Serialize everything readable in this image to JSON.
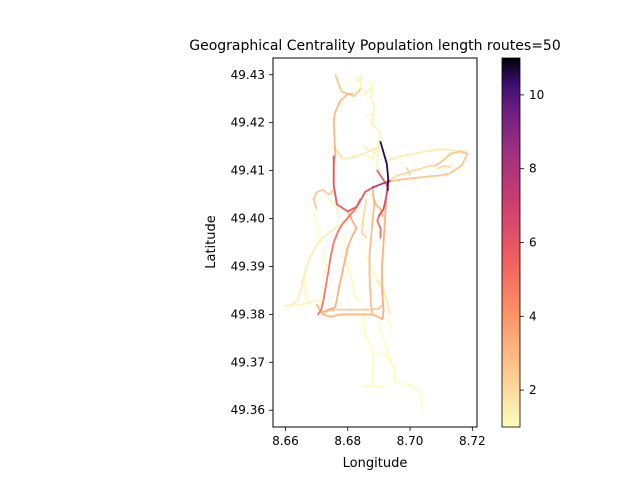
{
  "chart_data": {
    "type": "line",
    "title": "Geographical Centrality Population length routes=50",
    "xlabel": "Longitude",
    "ylabel": "Latitude",
    "xlim": [
      8.656,
      8.7215
    ],
    "ylim": [
      49.3565,
      49.4335
    ],
    "xticks": [
      8.66,
      8.68,
      8.7,
      8.72
    ],
    "xtick_labels": [
      "8.66",
      "8.68",
      "8.70",
      "8.72"
    ],
    "yticks": [
      49.36,
      49.37,
      49.38,
      49.39,
      49.4,
      49.41,
      49.42,
      49.43
    ],
    "ytick_labels": [
      "49.36",
      "49.37",
      "49.38",
      "49.39",
      "49.40",
      "49.41",
      "49.42",
      "49.43"
    ],
    "colorbar": {
      "colormap": "magma_r",
      "range": [
        1,
        11
      ],
      "ticks": [
        2,
        4,
        6,
        8,
        10
      ],
      "tick_labels": [
        "2",
        "4",
        "6",
        "8",
        "10"
      ]
    },
    "grid": false,
    "series": [
      {
        "value": 1.2,
        "points": [
          [
            8.6825,
            49.4295
          ],
          [
            8.6835,
            49.4285
          ],
          [
            8.6845,
            49.43
          ],
          [
            8.684,
            49.427
          ],
          [
            8.6855,
            49.426
          ],
          [
            8.688,
            49.4275
          ],
          [
            8.6875,
            49.4255
          ],
          [
            8.6885,
            49.423
          ],
          [
            8.688,
            49.42
          ],
          [
            8.689,
            49.419
          ],
          [
            8.6905,
            49.418
          ],
          [
            8.69,
            49.415
          ],
          [
            8.6895,
            49.4125
          ],
          [
            8.6895,
            49.41
          ]
        ]
      },
      {
        "value": 1.0,
        "points": [
          [
            8.6875,
            49.429
          ],
          [
            8.6872,
            49.4265
          ]
        ]
      },
      {
        "value": 1.2,
        "points": [
          [
            8.686,
            49.4215
          ],
          [
            8.688,
            49.4218
          ],
          [
            8.6875,
            49.4195
          ],
          [
            8.689,
            49.419
          ]
        ]
      },
      {
        "value": 1.3,
        "points": [
          [
            8.6855,
            49.415
          ],
          [
            8.687,
            49.414
          ],
          [
            8.689,
            49.4145
          ],
          [
            8.688,
            49.4125
          ],
          [
            8.6865,
            49.413
          ]
        ]
      },
      {
        "value": 1.5,
        "points": [
          [
            8.678,
            49.4125
          ],
          [
            8.68,
            49.4125
          ],
          [
            8.683,
            49.413
          ],
          [
            8.686,
            49.4138
          ],
          [
            8.69,
            49.415
          ]
        ]
      },
      {
        "value": 2.0,
        "points": [
          [
            8.6755,
            49.415
          ],
          [
            8.678,
            49.4128
          ]
        ]
      },
      {
        "value": 2.5,
        "points": [
          [
            8.676,
            49.43
          ],
          [
            8.678,
            49.4265
          ],
          [
            8.682,
            49.4255
          ],
          [
            8.684,
            49.427
          ]
        ]
      },
      {
        "value": 3.0,
        "points": [
          [
            8.6755,
            49.407
          ],
          [
            8.6755,
            49.411
          ],
          [
            8.676,
            49.413
          ],
          [
            8.6758,
            49.416
          ],
          [
            8.6755,
            49.42
          ],
          [
            8.6758,
            49.422
          ],
          [
            8.6775,
            49.4245
          ],
          [
            8.68,
            49.426
          ],
          [
            8.6815,
            49.426
          ]
        ]
      },
      {
        "value": 6.0,
        "points": [
          [
            8.6755,
            49.413
          ],
          [
            8.6755,
            49.407
          ],
          [
            8.676,
            49.405
          ]
        ]
      },
      {
        "value": 5.8,
        "points": [
          [
            8.676,
            49.405
          ],
          [
            8.6765,
            49.403
          ],
          [
            8.68,
            49.4015
          ],
          [
            8.683,
            49.4025
          ],
          [
            8.6855,
            49.4055
          ],
          [
            8.688,
            49.4065
          ]
        ]
      },
      {
        "value": 7.5,
        "points": [
          [
            8.688,
            49.4065
          ],
          [
            8.692,
            49.4075
          ],
          [
            8.6935,
            49.4078
          ]
        ]
      },
      {
        "value": 5.5,
        "points": [
          [
            8.6895,
            49.41
          ],
          [
            8.6925,
            49.407
          ],
          [
            8.693,
            49.406
          ]
        ]
      },
      {
        "value": 10.5,
        "points": [
          [
            8.6905,
            49.416
          ],
          [
            8.6925,
            49.4115
          ],
          [
            8.693,
            49.4085
          ],
          [
            8.6928,
            49.406
          ]
        ]
      },
      {
        "value": 6.5,
        "points": [
          [
            8.6928,
            49.406
          ],
          [
            8.6915,
            49.402
          ],
          [
            8.69,
            49.4005
          ]
        ]
      },
      {
        "value": 5.0,
        "points": [
          [
            8.69,
            49.4005
          ],
          [
            8.6895,
            49.3995
          ],
          [
            8.6905,
            49.398
          ],
          [
            8.6905,
            49.396
          ]
        ]
      },
      {
        "value": 2.8,
        "points": [
          [
            8.688,
            49.4065
          ],
          [
            8.6885,
            49.403
          ],
          [
            8.688,
            49.4
          ],
          [
            8.6875,
            49.396
          ],
          [
            8.687,
            49.3925
          ],
          [
            8.687,
            49.388
          ],
          [
            8.6872,
            49.385
          ],
          [
            8.6875,
            49.382
          ],
          [
            8.688,
            49.38
          ]
        ]
      },
      {
        "value": 3.2,
        "points": [
          [
            8.6925,
            49.406
          ],
          [
            8.692,
            49.4
          ],
          [
            8.6915,
            49.395
          ],
          [
            8.691,
            49.39
          ],
          [
            8.691,
            49.385
          ],
          [
            8.6915,
            49.381
          ],
          [
            8.6912,
            49.379
          ]
        ]
      },
      {
        "value": 2.0,
        "points": [
          [
            8.6935,
            49.408
          ],
          [
            8.696,
            49.409
          ],
          [
            8.699,
            49.4095
          ],
          [
            8.701,
            49.41
          ],
          [
            8.704,
            49.4105
          ],
          [
            8.706,
            49.411
          ],
          [
            8.708,
            49.411
          ]
        ]
      },
      {
        "value": 2.6,
        "points": [
          [
            8.6935,
            49.4078
          ],
          [
            8.698,
            49.4082
          ],
          [
            8.702,
            49.4085
          ],
          [
            8.706,
            49.4088
          ],
          [
            8.71,
            49.409
          ],
          [
            8.713,
            49.4095
          ],
          [
            8.7165,
            49.411
          ],
          [
            8.7185,
            49.4135
          ],
          [
            8.716,
            49.414
          ],
          [
            8.713,
            49.4135
          ],
          [
            8.71,
            49.4118
          ],
          [
            8.708,
            49.411
          ]
        ]
      },
      {
        "value": 2.2,
        "points": [
          [
            8.699,
            49.4105
          ],
          [
            8.7,
            49.4092
          ]
        ]
      },
      {
        "value": 1.5,
        "points": [
          [
            8.692,
            49.412
          ],
          [
            8.697,
            49.413
          ],
          [
            8.701,
            49.4135
          ],
          [
            8.705,
            49.414
          ],
          [
            8.71,
            49.4145
          ],
          [
            8.715,
            49.4142
          ],
          [
            8.718,
            49.414
          ]
        ]
      },
      {
        "value": 2.0,
        "points": [
          [
            8.709,
            49.4105
          ],
          [
            8.711,
            49.411
          ],
          [
            8.713,
            49.4108
          ]
        ]
      },
      {
        "value": 4.8,
        "points": [
          [
            8.684,
            49.404
          ],
          [
            8.6825,
            49.402
          ],
          [
            8.6805,
            49.4005
          ],
          [
            8.6785,
            49.399
          ],
          [
            8.677,
            49.3975
          ],
          [
            8.6755,
            49.395
          ],
          [
            8.6745,
            49.392
          ],
          [
            8.6738,
            49.389
          ],
          [
            8.673,
            49.386
          ],
          [
            8.6722,
            49.383
          ],
          [
            8.6715,
            49.381
          ],
          [
            8.6705,
            49.38
          ]
        ]
      },
      {
        "value": 3.2,
        "points": [
          [
            8.68,
            49.4015
          ],
          [
            8.6815,
            49.3995
          ],
          [
            8.6828,
            49.398
          ],
          [
            8.6812,
            49.396
          ],
          [
            8.68,
            49.394
          ],
          [
            8.679,
            49.391
          ],
          [
            8.678,
            49.388
          ],
          [
            8.677,
            49.385
          ],
          [
            8.6765,
            49.383
          ],
          [
            8.676,
            49.3815
          ],
          [
            8.674,
            49.381
          ],
          [
            8.672,
            49.3805
          ]
        ]
      },
      {
        "value": 2.5,
        "points": [
          [
            8.672,
            49.3805
          ],
          [
            8.676,
            49.381
          ],
          [
            8.68,
            49.381
          ],
          [
            8.684,
            49.381
          ],
          [
            8.687,
            49.381
          ],
          [
            8.69,
            49.3812
          ],
          [
            8.6912,
            49.382
          ],
          [
            8.6913,
            49.385
          ]
        ]
      },
      {
        "value": 3.0,
        "points": [
          [
            8.67,
            49.382
          ],
          [
            8.672,
            49.38
          ],
          [
            8.6745,
            49.3795
          ],
          [
            8.678,
            49.38
          ],
          [
            8.682,
            49.38
          ],
          [
            8.685,
            49.38
          ],
          [
            8.688,
            49.38
          ],
          [
            8.6912,
            49.379
          ]
        ]
      },
      {
        "value": 2.0,
        "points": [
          [
            8.686,
            49.404
          ],
          [
            8.685,
            49.4
          ],
          [
            8.6845,
            49.397
          ],
          [
            8.686,
            49.396
          ]
        ]
      },
      {
        "value": 3.0,
        "points": [
          [
            8.688,
            49.405
          ],
          [
            8.689,
            49.403
          ],
          [
            8.6905,
            49.402
          ],
          [
            8.6912,
            49.4005
          ]
        ]
      },
      {
        "value": 2.4,
        "points": [
          [
            8.67,
            49.402
          ],
          [
            8.669,
            49.404
          ],
          [
            8.67,
            49.4055
          ],
          [
            8.672,
            49.406
          ],
          [
            8.674,
            49.405
          ],
          [
            8.6755,
            49.406
          ]
        ]
      },
      {
        "value": 1.2,
        "points": [
          [
            8.674,
            49.404
          ],
          [
            8.676,
            49.403
          ],
          [
            8.677,
            49.401
          ]
        ]
      },
      {
        "value": 1.4,
        "points": [
          [
            8.684,
            49.404
          ],
          [
            8.681,
            49.401
          ],
          [
            8.678,
            49.399
          ],
          [
            8.675,
            49.3975
          ],
          [
            8.672,
            49.396
          ],
          [
            8.67,
            49.3945
          ],
          [
            8.668,
            49.392
          ],
          [
            8.6665,
            49.3895
          ],
          [
            8.6655,
            49.387
          ],
          [
            8.665,
            49.385
          ],
          [
            8.664,
            49.383
          ],
          [
            8.662,
            49.382
          ],
          [
            8.66,
            49.3818
          ]
        ]
      },
      {
        "value": 1.1,
        "points": [
          [
            8.6665,
            49.3895
          ],
          [
            8.666,
            49.387
          ],
          [
            8.6665,
            49.3845
          ],
          [
            8.667,
            49.382
          ]
        ]
      },
      {
        "value": 1.2,
        "points": [
          [
            8.662,
            49.3818
          ],
          [
            8.665,
            49.382
          ],
          [
            8.668,
            49.3825
          ],
          [
            8.67,
            49.383
          ],
          [
            8.6715,
            49.3825
          ]
        ]
      },
      {
        "value": 1.0,
        "points": [
          [
            8.669,
            49.401
          ],
          [
            8.67,
            49.399
          ],
          [
            8.671,
            49.398
          ],
          [
            8.67,
            49.396
          ],
          [
            8.671,
            49.395
          ]
        ]
      },
      {
        "value": 1.0,
        "points": [
          [
            8.672,
            49.393
          ],
          [
            8.6735,
            49.39
          ],
          [
            8.672,
            49.388
          ]
        ]
      },
      {
        "value": 1.1,
        "points": [
          [
            8.679,
            49.396
          ],
          [
            8.68,
            49.39
          ],
          [
            8.6815,
            49.387
          ],
          [
            8.682,
            49.384
          ],
          [
            8.683,
            49.383
          ],
          [
            8.6845,
            49.3835
          ]
        ]
      },
      {
        "value": 1.0,
        "points": [
          [
            8.686,
            49.3925
          ],
          [
            8.687,
            49.39
          ],
          [
            8.689,
            49.388
          ],
          [
            8.69,
            49.386
          ]
        ]
      },
      {
        "value": 1.0,
        "points": [
          [
            8.686,
            49.3815
          ],
          [
            8.685,
            49.378
          ],
          [
            8.6855,
            49.376
          ],
          [
            8.687,
            49.374
          ],
          [
            8.688,
            49.372
          ],
          [
            8.688,
            49.37
          ],
          [
            8.688,
            49.368
          ],
          [
            8.688,
            49.366
          ],
          [
            8.6885,
            49.365
          ]
        ]
      },
      {
        "value": 1.0,
        "points": [
          [
            8.689,
            49.372
          ],
          [
            8.692,
            49.3715
          ],
          [
            8.694,
            49.37
          ],
          [
            8.695,
            49.369
          ]
        ]
      },
      {
        "value": 1.0,
        "points": [
          [
            8.69,
            49.378
          ],
          [
            8.692,
            49.374
          ],
          [
            8.694,
            49.37
          ],
          [
            8.695,
            49.368
          ],
          [
            8.695,
            49.366
          ],
          [
            8.698,
            49.3655
          ],
          [
            8.701,
            49.365
          ],
          [
            8.703,
            49.364
          ],
          [
            8.704,
            49.362
          ],
          [
            8.7035,
            49.3605
          ]
        ]
      },
      {
        "value": 1.0,
        "points": [
          [
            8.6845,
            49.365
          ],
          [
            8.688,
            49.3652
          ],
          [
            8.69,
            49.365
          ],
          [
            8.692,
            49.3648
          ]
        ]
      },
      {
        "value": 1.0,
        "points": [
          [
            8.694,
            49.377
          ],
          [
            8.693,
            49.379
          ]
        ]
      },
      {
        "value": 1.5,
        "points": [
          [
            8.6895,
            49.387
          ],
          [
            8.691,
            49.386
          ],
          [
            8.692,
            49.384
          ],
          [
            8.693,
            49.382
          ],
          [
            8.6935,
            49.38
          ]
        ]
      }
    ]
  }
}
